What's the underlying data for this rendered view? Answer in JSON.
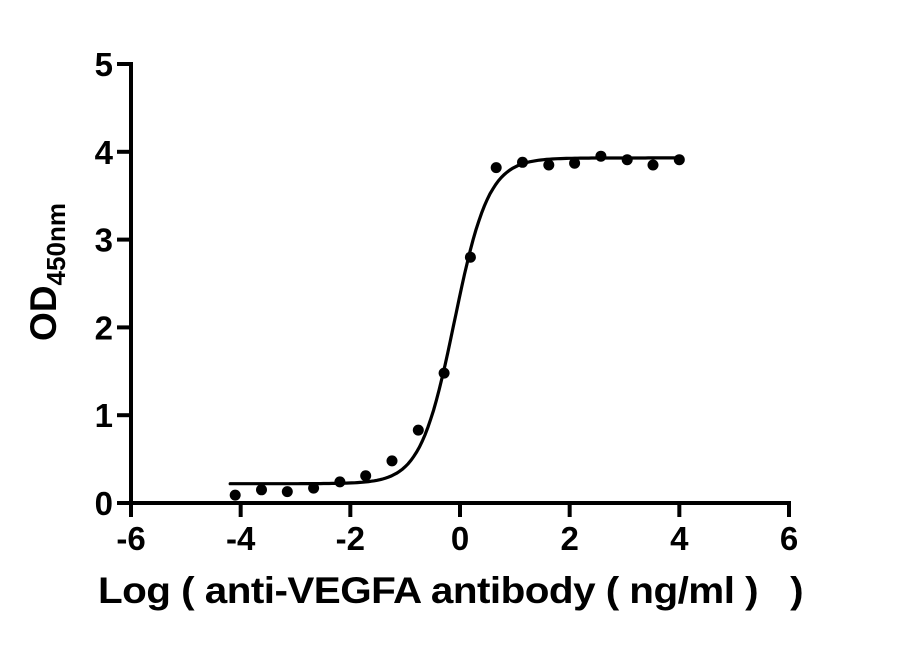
{
  "figure": {
    "background": "#ffffff"
  },
  "chart_data": {
    "type": "scatter",
    "subtype": "sigmoidal-dose-response-elisa",
    "title": "",
    "xlabel": "Log ( anti-VEGFA antibody ( ng/ml )   )",
    "ylabel_main": "OD",
    "ylabel_subscript": "450nm",
    "xlim": [
      -6,
      6
    ],
    "ylim": [
      0,
      5
    ],
    "x_ticks": [
      -6,
      -4,
      -2,
      0,
      2,
      4,
      6
    ],
    "y_ticks": [
      0,
      1,
      2,
      3,
      4,
      5
    ],
    "grid": false,
    "legend": "none",
    "colors": {
      "marker": "#000000",
      "curve": "#000000",
      "axis": "#000000",
      "text": "#000000",
      "background": "#ffffff"
    },
    "points": [
      {
        "x": -4.1,
        "y": 0.09
      },
      {
        "x": -3.62,
        "y": 0.15
      },
      {
        "x": -3.15,
        "y": 0.13
      },
      {
        "x": -2.67,
        "y": 0.17
      },
      {
        "x": -2.19,
        "y": 0.24
      },
      {
        "x": -1.72,
        "y": 0.31
      },
      {
        "x": -1.24,
        "y": 0.48
      },
      {
        "x": -0.76,
        "y": 0.83
      },
      {
        "x": -0.29,
        "y": 1.48
      },
      {
        "x": 0.19,
        "y": 2.8
      },
      {
        "x": 0.66,
        "y": 3.82
      },
      {
        "x": 1.14,
        "y": 3.88
      },
      {
        "x": 1.62,
        "y": 3.85
      },
      {
        "x": 2.09,
        "y": 3.87
      },
      {
        "x": 2.57,
        "y": 3.95
      },
      {
        "x": 3.05,
        "y": 3.91
      },
      {
        "x": 3.52,
        "y": 3.85
      },
      {
        "x": 4.0,
        "y": 3.91
      }
    ],
    "fit_curve": {
      "model": "4PL",
      "bottom": 0.22,
      "top": 3.93,
      "logEC50": -0.1,
      "hillslope": 1.4,
      "x_range": [
        -4.19,
        4.05
      ]
    }
  }
}
